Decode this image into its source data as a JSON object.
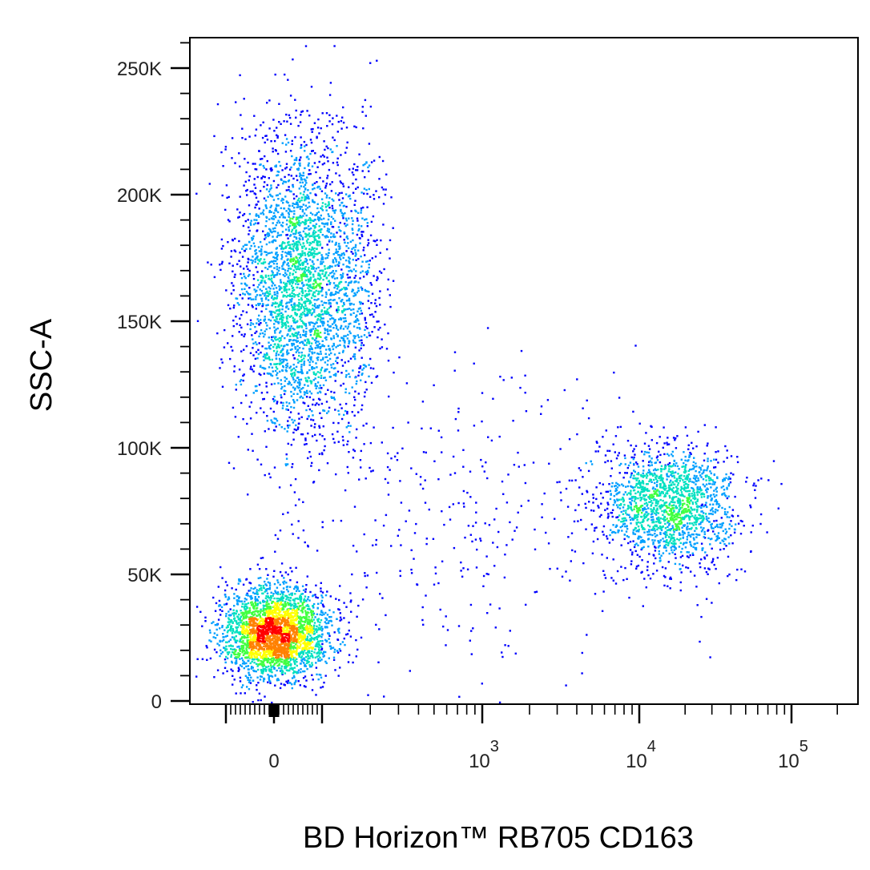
{
  "chart_data": {
    "type": "scatter",
    "subtype": "flow-cytometry density dot plot",
    "xlabel": "BD Horizon™ RB705 CD163",
    "ylabel": "SSC-A",
    "x_scale": "biexponential",
    "y_scale": "linear",
    "xlim": [
      -300,
      200000
    ],
    "ylim": [
      0,
      262144
    ],
    "x_ticks": [
      {
        "value": 0,
        "base": "0",
        "exp": ""
      },
      {
        "value": 1000,
        "base": "10",
        "exp": "3"
      },
      {
        "value": 10000,
        "base": "10",
        "exp": "4"
      },
      {
        "value": 100000,
        "base": "10",
        "exp": "5"
      }
    ],
    "y_ticks": [
      {
        "value": 0,
        "label": "0"
      },
      {
        "value": 50000,
        "label": "50K"
      },
      {
        "value": 100000,
        "label": "100K"
      },
      {
        "value": 150000,
        "label": "150K"
      },
      {
        "value": 200000,
        "label": "200K"
      },
      {
        "value": 250000,
        "label": "250K"
      }
    ],
    "populations": [
      {
        "x_center": 0,
        "y_center": 27000,
        "x_spread": 55,
        "y_spread": 9000,
        "events": 2800
      },
      {
        "x_center": 60,
        "y_center": 165000,
        "x_spread": 70,
        "y_spread": 30000,
        "events": 3200
      },
      {
        "x_center": 15000,
        "y_center": 77000,
        "x_spread_decades": 0.22,
        "y_spread": 12000,
        "events": 1700
      },
      {
        "x_center": 800,
        "y_center": 70000,
        "x_spread_decades": 0.6,
        "y_spread": 30000,
        "events": 350
      }
    ],
    "density_colors": [
      "#0000ff",
      "#00a0ff",
      "#00e0c0",
      "#40ff40",
      "#ffff00",
      "#ff8000",
      "#ff0000"
    ],
    "grid": false,
    "legend": "none"
  }
}
